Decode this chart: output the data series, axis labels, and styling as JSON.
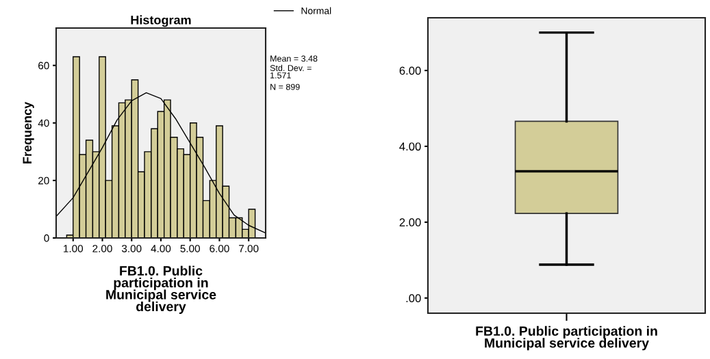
{
  "chart_data": [
    {
      "type": "histogram",
      "title": "Histogram",
      "xlabel": "FB1.0. Public\nparticipation in\nMunicipal service\ndelivery",
      "ylabel": "Frequency",
      "bins": [
        0.78,
        1.0,
        1.22,
        1.44,
        1.67,
        1.89,
        2.11,
        2.33,
        2.56,
        2.78,
        3.0,
        3.22,
        3.44,
        3.67,
        3.89,
        4.11,
        4.33,
        4.56,
        4.78,
        5.0,
        5.22,
        5.44,
        5.67,
        5.89,
        6.11,
        6.33,
        6.56,
        6.78,
        7.0,
        7.22
      ],
      "values": [
        1,
        63,
        29,
        34,
        30,
        63,
        20,
        39,
        47,
        48,
        55,
        23,
        30,
        38,
        44,
        48,
        35,
        31,
        29,
        40,
        35,
        13,
        20,
        39,
        18,
        7,
        7,
        3,
        10
      ],
      "color": "#d3cd98",
      "series": [
        {
          "type": "line",
          "name": "Normal",
          "color": "#000000",
          "x": [
            0.42,
            1.0,
            1.5,
            2.0,
            2.5,
            3.0,
            3.5,
            4.0,
            4.5,
            5.0,
            5.5,
            6.0,
            6.5,
            7.0,
            7.58
          ],
          "values": [
            7.5,
            14,
            22.7,
            31.4,
            41,
            47.7,
            50.5,
            48.5,
            41.5,
            33,
            24.5,
            15.5,
            8,
            4.4,
            1.7
          ]
        }
      ],
      "xlim": [
        0.42,
        7.58
      ],
      "ylim": [
        0,
        73
      ],
      "xticks": [
        {
          "value": 1,
          "label": "1.00"
        },
        {
          "value": 2,
          "label": "2.00"
        },
        {
          "value": 3,
          "label": "3.00"
        },
        {
          "value": 4,
          "label": "4.00"
        },
        {
          "value": 5,
          "label": "5.00"
        },
        {
          "value": 6,
          "label": "6.00"
        },
        {
          "value": 7,
          "label": "7.00"
        }
      ],
      "yticks": [
        0,
        20,
        40,
        60
      ],
      "legend": "top right",
      "grid": false,
      "annotations": [
        "Mean = 3.48",
        "Std. Dev. =\n1.571",
        "N = 899"
      ]
    },
    {
      "type": "box",
      "xlabel": "FB1.0. Public participation in\nMunicipal service delivery",
      "categories": [
        null
      ],
      "color": "#d3cd98",
      "boxes": [
        {
          "low": 0.88,
          "q1": 2.23,
          "median": 3.34,
          "q3": 4.66,
          "high": 7.0
        }
      ],
      "ylim": [
        -0.4,
        7.39
      ],
      "yticks": [
        {
          "value": 0,
          "label": ".00"
        },
        {
          "value": 2,
          "label": "2.00"
        },
        {
          "value": 4,
          "label": "4.00"
        },
        {
          "value": 6,
          "label": "6.00"
        }
      ],
      "grid": false
    }
  ]
}
